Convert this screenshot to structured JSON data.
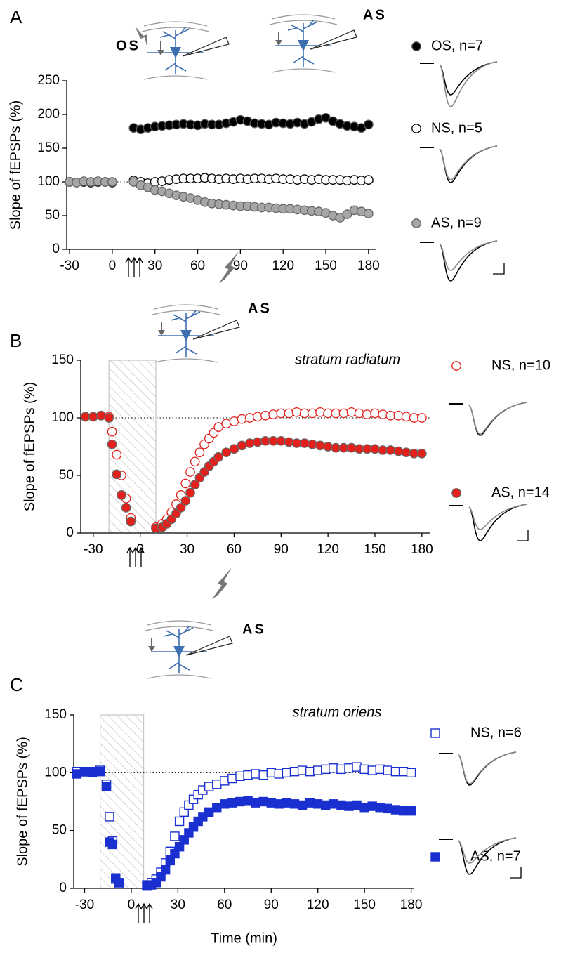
{
  "chart_data": [
    {
      "type": "scatter",
      "panel": "A",
      "annotations": [
        "OS",
        "AS"
      ],
      "y_label": "Slope of fEPSPs (%)",
      "xlim": [
        -32,
        185
      ],
      "ylim": [
        0,
        250
      ],
      "xticks": [
        -30,
        0,
        30,
        60,
        90,
        120,
        150,
        180
      ],
      "yticks": [
        0,
        50,
        100,
        150,
        200,
        250
      ],
      "reference_line": 100,
      "series": [
        {
          "name": "OS, n=7",
          "color": "#000000",
          "marker": "circle",
          "filled": true,
          "x": [
            15,
            20,
            25,
            30,
            35,
            40,
            45,
            50,
            55,
            60,
            65,
            70,
            75,
            80,
            85,
            90,
            95,
            100,
            105,
            110,
            115,
            120,
            125,
            130,
            135,
            140,
            145,
            150,
            155,
            160,
            165,
            170,
            175,
            180
          ],
          "values": [
            180,
            178,
            180,
            182,
            183,
            184,
            185,
            186,
            185,
            184,
            186,
            185,
            185,
            187,
            189,
            192,
            190,
            187,
            186,
            185,
            188,
            187,
            186,
            188,
            186,
            189,
            193,
            195,
            190,
            186,
            183,
            182,
            180,
            185
          ]
        },
        {
          "name": "NS, n=5",
          "color": "#000000",
          "marker": "circle",
          "filled": false,
          "x": [
            -30,
            -25,
            -20,
            -15,
            -10,
            -5,
            0,
            15,
            20,
            25,
            30,
            35,
            40,
            45,
            50,
            55,
            60,
            65,
            70,
            75,
            80,
            85,
            90,
            95,
            100,
            105,
            110,
            115,
            120,
            125,
            130,
            135,
            140,
            145,
            150,
            155,
            160,
            165,
            170,
            175,
            180
          ],
          "values": [
            100,
            99,
            100,
            99,
            100,
            100,
            99,
            102,
            100,
            98,
            100,
            101,
            103,
            104,
            105,
            105,
            105,
            106,
            105,
            104,
            105,
            104,
            105,
            104,
            105,
            105,
            104,
            105,
            104,
            104,
            103,
            104,
            103,
            104,
            103,
            103,
            103,
            102,
            103,
            102,
            103
          ]
        },
        {
          "name": "AS, n=9",
          "color": "#a6a6a6",
          "marker": "circle",
          "filled": true,
          "x": [
            -30,
            -25,
            -20,
            -15,
            -10,
            -5,
            0,
            15,
            20,
            25,
            30,
            35,
            40,
            45,
            50,
            55,
            60,
            65,
            70,
            75,
            80,
            85,
            90,
            95,
            100,
            105,
            110,
            115,
            120,
            125,
            130,
            135,
            140,
            145,
            150,
            155,
            160,
            165,
            170,
            175,
            180
          ],
          "values": [
            100,
            99,
            101,
            100,
            101,
            100,
            100,
            100,
            95,
            92,
            88,
            86,
            83,
            80,
            78,
            76,
            73,
            70,
            68,
            67,
            66,
            65,
            64,
            64,
            63,
            62,
            62,
            61,
            60,
            60,
            59,
            58,
            57,
            56,
            54,
            50,
            47,
            52,
            58,
            56,
            53
          ]
        }
      ]
    },
    {
      "type": "scatter",
      "panel": "B",
      "annotations": [
        "AS",
        "stratum radiatum"
      ],
      "y_label": "Slope of fEPSPs (%)",
      "xlim": [
        -38,
        185
      ],
      "ylim": [
        0,
        150
      ],
      "xticks": [
        -30,
        0,
        30,
        60,
        90,
        120,
        150,
        180
      ],
      "yticks": [
        0,
        50,
        100,
        150
      ],
      "reference_line": 100,
      "hatched_span": [
        -20,
        10
      ],
      "series": [
        {
          "name": "NS, n=10",
          "color": "#e3201b",
          "marker": "circle",
          "filled": false,
          "x": [
            -35,
            -30,
            -25,
            -20,
            -18,
            -15,
            -12,
            -9,
            -6,
            10,
            14,
            17,
            20,
            23,
            26,
            29,
            32,
            35,
            38,
            41,
            44,
            47,
            50,
            55,
            60,
            65,
            70,
            75,
            80,
            85,
            90,
            95,
            100,
            105,
            110,
            115,
            120,
            125,
            130,
            135,
            140,
            145,
            150,
            155,
            160,
            165,
            170,
            175,
            180
          ],
          "values": [
            101,
            101,
            102,
            101,
            88,
            68,
            50,
            30,
            13,
            5,
            8,
            12,
            18,
            25,
            33,
            43,
            53,
            62,
            70,
            77,
            82,
            87,
            92,
            95,
            97,
            99,
            100,
            101,
            102,
            103,
            104,
            104,
            105,
            104,
            104,
            105,
            104,
            104,
            104,
            105,
            104,
            103,
            104,
            103,
            102,
            102,
            101,
            100,
            100
          ]
        },
        {
          "name": "AS, n=14",
          "color": "#e3201b",
          "marker": "circle",
          "filled": true,
          "x": [
            -35,
            -30,
            -25,
            -20,
            -18,
            -15,
            -12,
            -9,
            -6,
            10,
            14,
            17,
            20,
            23,
            26,
            29,
            32,
            35,
            38,
            41,
            44,
            47,
            50,
            55,
            60,
            65,
            70,
            75,
            80,
            85,
            90,
            95,
            100,
            105,
            110,
            115,
            120,
            125,
            130,
            135,
            140,
            145,
            150,
            155,
            160,
            165,
            170,
            175,
            180
          ],
          "values": [
            101,
            101,
            102,
            100,
            77,
            51,
            33,
            22,
            10,
            4,
            5,
            8,
            12,
            17,
            22,
            28,
            35,
            42,
            48,
            53,
            58,
            62,
            66,
            70,
            73,
            76,
            78,
            79,
            80,
            80,
            80,
            79,
            78,
            78,
            77,
            76,
            75,
            74,
            74,
            74,
            73,
            73,
            73,
            72,
            72,
            71,
            70,
            69,
            69
          ]
        }
      ]
    },
    {
      "type": "scatter",
      "panel": "C",
      "annotations": [
        "AS",
        "stratum oriens"
      ],
      "y_label": "Slope of fEPSPs (%)",
      "x_label": "Time (min)",
      "xlim": [
        -37,
        182
      ],
      "ylim": [
        0,
        150
      ],
      "xticks": [
        -30,
        0,
        30,
        60,
        90,
        120,
        150,
        180
      ],
      "yticks": [
        0,
        50,
        100,
        150
      ],
      "reference_line": 100,
      "hatched_span": [
        -20,
        8
      ],
      "series": [
        {
          "name": "NS, n=6",
          "color": "#1a2fd0",
          "marker": "square",
          "filled": false,
          "x": [
            -35,
            -30,
            -25,
            -20,
            -16,
            -14,
            -12,
            -10,
            -8,
            10,
            13,
            16,
            19,
            22,
            25,
            28,
            31,
            34,
            37,
            40,
            43,
            46,
            50,
            55,
            60,
            65,
            70,
            75,
            80,
            85,
            90,
            95,
            100,
            105,
            110,
            115,
            120,
            125,
            130,
            135,
            140,
            145,
            150,
            155,
            160,
            165,
            170,
            175,
            180
          ],
          "values": [
            101,
            100,
            101,
            102,
            90,
            62,
            41,
            8,
            4,
            3,
            5,
            8,
            14,
            22,
            32,
            45,
            58,
            66,
            72,
            77,
            81,
            85,
            88,
            90,
            93,
            95,
            97,
            98,
            99,
            98,
            100,
            99,
            100,
            101,
            102,
            101,
            102,
            103,
            104,
            103,
            104,
            105,
            103,
            102,
            103,
            102,
            101,
            101,
            100
          ]
        },
        {
          "name": "AS, n=7",
          "color": "#1a2fd0",
          "marker": "square",
          "filled": true,
          "x": [
            -35,
            -30,
            -25,
            -20,
            -16,
            -14,
            -12,
            -10,
            -8,
            10,
            13,
            16,
            19,
            22,
            25,
            28,
            31,
            34,
            37,
            40,
            43,
            46,
            50,
            55,
            60,
            65,
            70,
            75,
            80,
            85,
            90,
            95,
            100,
            105,
            110,
            115,
            120,
            125,
            130,
            135,
            140,
            145,
            150,
            155,
            160,
            165,
            170,
            175,
            180
          ],
          "values": [
            99,
            101,
            100,
            101,
            88,
            40,
            38,
            9,
            5,
            2,
            3,
            5,
            10,
            16,
            24,
            30,
            36,
            42,
            48,
            53,
            58,
            62,
            66,
            70,
            73,
            74,
            75,
            76,
            74,
            75,
            74,
            73,
            74,
            73,
            72,
            74,
            73,
            72,
            73,
            72,
            71,
            72,
            70,
            71,
            70,
            69,
            68,
            67,
            67
          ]
        }
      ]
    }
  ]
}
